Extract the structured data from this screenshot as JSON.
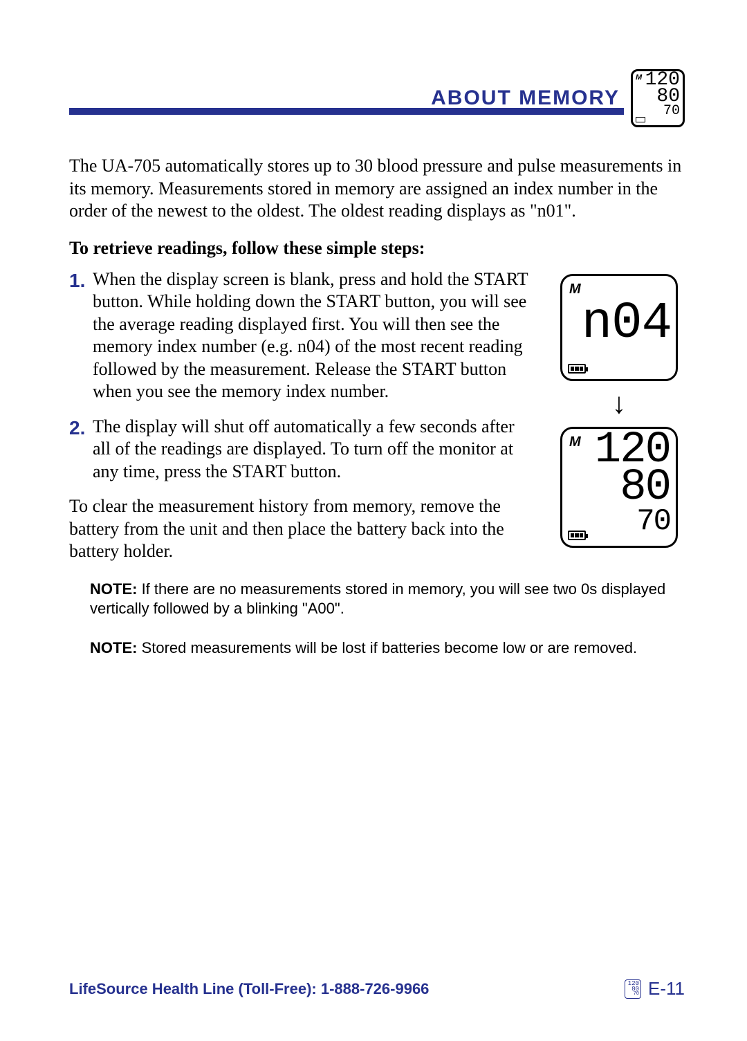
{
  "colors": {
    "brand": "#26318f",
    "text": "#000000",
    "bg": "#ffffff"
  },
  "header": {
    "title": "ABOUT MEMORY",
    "mini_display": {
      "sys": "120",
      "dia": "80",
      "pul": "70"
    }
  },
  "intro": "The UA-705 automatically stores up to 30 blood pressure and pulse measurements in its memory. Measurements stored in memory are assigned an index number in the order of the newest to the oldest. The oldest reading displays as \"n01\".",
  "subhead": "To retrieve readings, follow these simple steps:",
  "steps": [
    {
      "num": "1.",
      "text": "When the display screen is blank, press and hold the START button. While holding down the START button, you will see the average reading displayed first.  You will then see the memory index number (e.g. n04) of the most recent reading followed by the measurement.  Release the START button when you see the memory index number."
    },
    {
      "num": "2.",
      "text": "The display will shut off automatically a few seconds after all of the readings are displayed. To turn off the monitor at any time, press the START button."
    }
  ],
  "clear_para": "To clear the measurement history from memory, remove the battery from the unit and then place the battery back into the battery holder.",
  "notes": [
    {
      "label": "NOTE:",
      "text": " If there are no measurements stored in memory, you will see two 0s displayed vertically followed by a blinking \"A00\"."
    },
    {
      "label": "NOTE:",
      "text": " Stored measurements will be lost if batteries become low or are removed."
    }
  ],
  "figure": {
    "index_label": "n04",
    "reading": {
      "sys": "120",
      "dia": "80",
      "pul": "70"
    },
    "memory_indicator": "M"
  },
  "footer": {
    "line": "LifeSource Health Line (Toll-Free): 1-888-726-9966",
    "page": "E-11"
  }
}
